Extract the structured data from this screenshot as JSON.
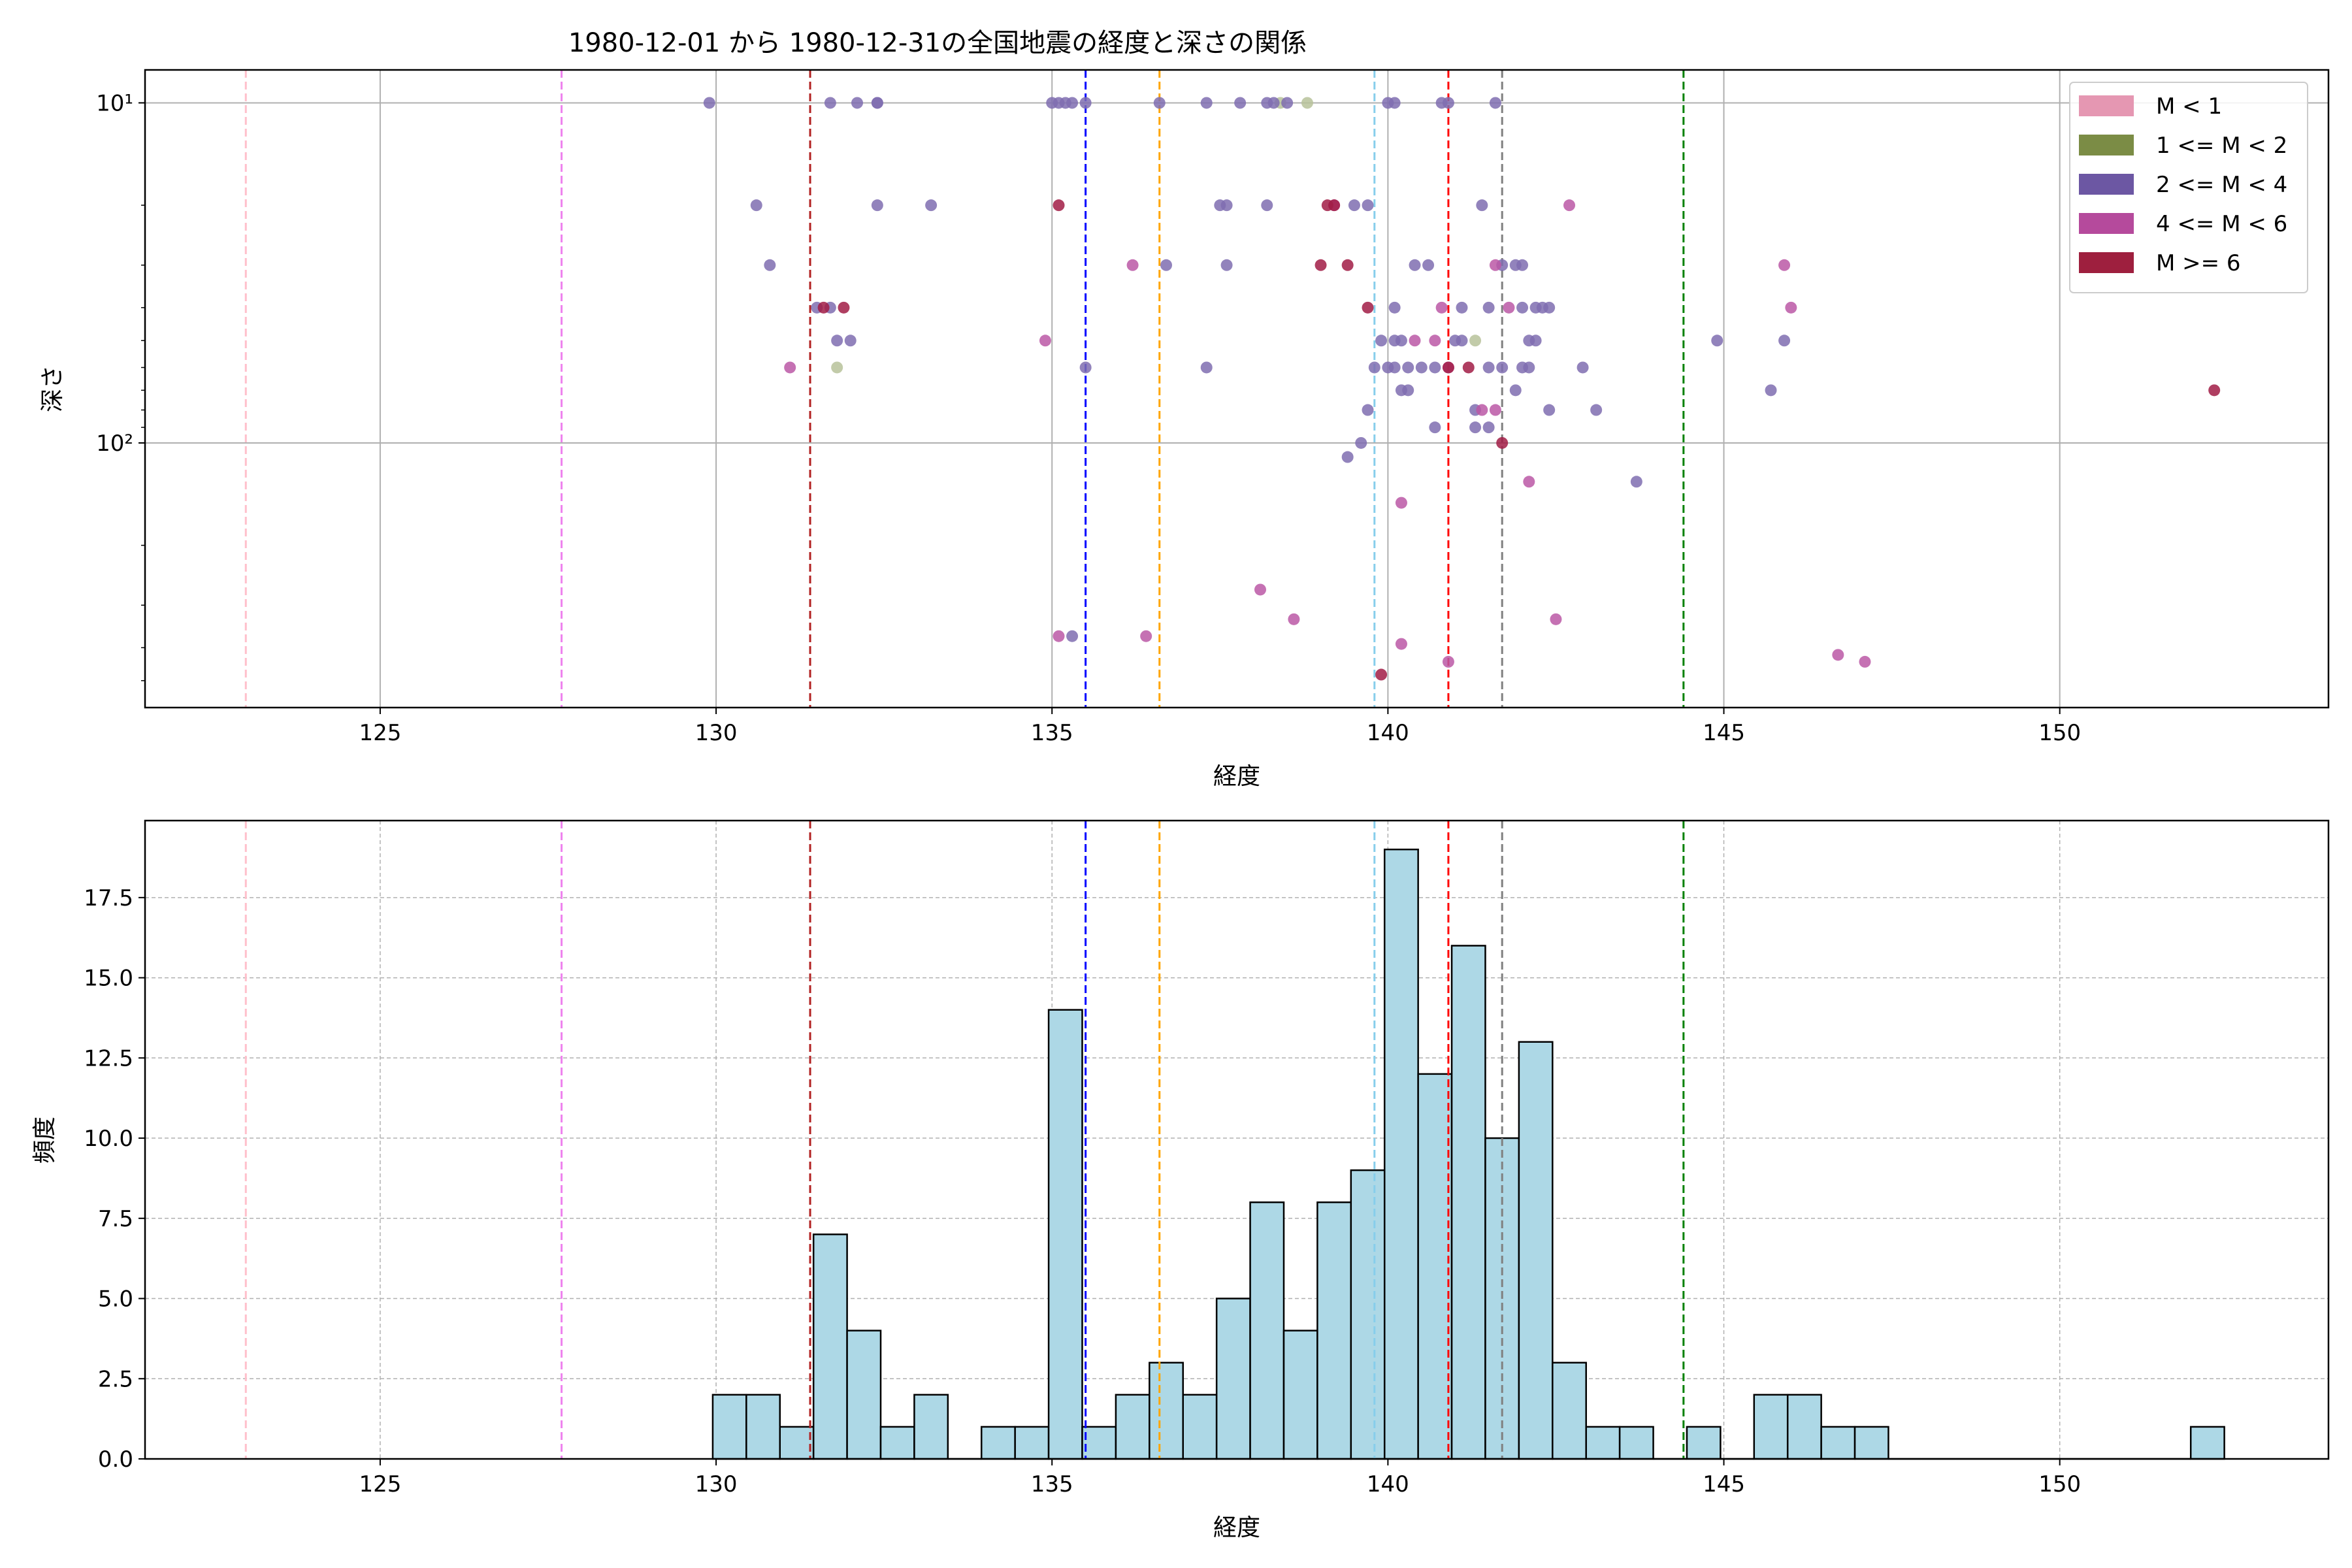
{
  "chart_data": [
    {
      "type": "scatter",
      "title": "1980-12-01 から 1980-12-31の全国地震の経度と深さの関係",
      "xlabel": "経度",
      "ylabel": "深さ",
      "xlim": [
        121.5,
        154
      ],
      "ylim": [
        600,
        8
      ],
      "yscale": "log-inverted",
      "xticks": [
        125,
        130,
        135,
        140,
        145,
        150
      ],
      "xtick_labels": [
        "125",
        "130",
        "135",
        "140",
        "145",
        "150"
      ],
      "yticks": [
        10,
        100
      ],
      "ytick_labels": [
        "10¹",
        "10²"
      ],
      "grid": true,
      "legend": {
        "position": "top-right",
        "entries": [
          {
            "label": "M < 1",
            "color": "#e597b2"
          },
          {
            "label": "1 <= M < 2",
            "color": "#7b8c45"
          },
          {
            "label": "2 <= M < 4",
            "color": "#6c57a3"
          },
          {
            "label": "4 <= M < 6",
            "color": "#b54a9c"
          },
          {
            "label": "M >= 6",
            "color": "#9e1f3e"
          }
        ]
      },
      "vlines": [
        {
          "x": 123.0,
          "color": "#ffc0cb"
        },
        {
          "x": 127.7,
          "color": "#ee82ee"
        },
        {
          "x": 131.4,
          "color": "#b22222"
        },
        {
          "x": 135.5,
          "color": "#0000ff"
        },
        {
          "x": 136.6,
          "color": "#ffa500"
        },
        {
          "x": 139.8,
          "color": "#87ceeb"
        },
        {
          "x": 140.9,
          "color": "#ff0000"
        },
        {
          "x": 141.7,
          "color": "#808080"
        },
        {
          "x": 144.4,
          "color": "#008000"
        }
      ],
      "series": [
        {
          "name": "1 <= M < 2",
          "color": "#b7c29a",
          "points": [
            [
              138.8,
              10
            ],
            [
              138.4,
              10
            ],
            [
              131.8,
              60
            ],
            [
              141.3,
              50
            ]
          ]
        },
        {
          "name": "2 <= M < 4",
          "color": "#7f6db0",
          "points": [
            [
              129.9,
              10
            ],
            [
              131.7,
              10
            ],
            [
              132.1,
              10
            ],
            [
              132.4,
              10
            ],
            [
              132.4,
              10
            ],
            [
              135.0,
              10
            ],
            [
              135.1,
              10
            ],
            [
              135.2,
              10
            ],
            [
              135.3,
              10
            ],
            [
              135.5,
              10
            ],
            [
              136.6,
              10
            ],
            [
              137.3,
              10
            ],
            [
              137.8,
              10
            ],
            [
              138.2,
              10
            ],
            [
              138.3,
              10
            ],
            [
              138.5,
              10
            ],
            [
              140.1,
              10
            ],
            [
              140.0,
              10
            ],
            [
              140.8,
              10
            ],
            [
              140.9,
              10
            ],
            [
              141.6,
              10
            ],
            [
              130.6,
              20
            ],
            [
              132.4,
              20
            ],
            [
              133.2,
              20
            ],
            [
              137.5,
              20
            ],
            [
              137.6,
              20
            ],
            [
              138.2,
              20
            ],
            [
              139.5,
              20
            ],
            [
              139.7,
              20
            ],
            [
              141.4,
              20
            ],
            [
              130.8,
              30
            ],
            [
              136.7,
              30
            ],
            [
              137.6,
              30
            ],
            [
              140.4,
              30
            ],
            [
              140.6,
              30
            ],
            [
              141.7,
              30
            ],
            [
              141.9,
              30
            ],
            [
              142.0,
              30
            ],
            [
              131.5,
              40
            ],
            [
              131.7,
              40
            ],
            [
              140.1,
              40
            ],
            [
              141.1,
              40
            ],
            [
              141.5,
              40
            ],
            [
              142.0,
              40
            ],
            [
              142.2,
              40
            ],
            [
              142.3,
              40
            ],
            [
              142.4,
              40
            ],
            [
              131.8,
              50
            ],
            [
              132.0,
              50
            ],
            [
              139.9,
              50
            ],
            [
              140.1,
              50
            ],
            [
              140.2,
              50
            ],
            [
              141.0,
              50
            ],
            [
              141.1,
              50
            ],
            [
              142.1,
              50
            ],
            [
              142.2,
              50
            ],
            [
              144.9,
              50
            ],
            [
              145.9,
              50
            ],
            [
              135.5,
              60
            ],
            [
              137.3,
              60
            ],
            [
              139.8,
              60
            ],
            [
              140.0,
              60
            ],
            [
              140.1,
              60
            ],
            [
              140.3,
              60
            ],
            [
              140.5,
              60
            ],
            [
              140.7,
              60
            ],
            [
              141.5,
              60
            ],
            [
              141.7,
              60
            ],
            [
              142.0,
              60
            ],
            [
              142.1,
              60
            ],
            [
              142.9,
              60
            ],
            [
              140.2,
              70
            ],
            [
              140.3,
              70
            ],
            [
              141.9,
              70
            ],
            [
              145.7,
              70
            ],
            [
              139.7,
              80
            ],
            [
              142.4,
              80
            ],
            [
              143.1,
              80
            ],
            [
              141.3,
              80
            ],
            [
              140.7,
              90
            ],
            [
              141.3,
              90
            ],
            [
              141.5,
              90
            ],
            [
              139.6,
              100
            ],
            [
              139.4,
              110
            ],
            [
              143.7,
              130
            ],
            [
              135.3,
              370
            ]
          ]
        },
        {
          "name": "4 <= M < 6",
          "color": "#bb58a6",
          "points": [
            [
              142.7,
              20
            ],
            [
              139.2,
              20
            ],
            [
              136.2,
              30
            ],
            [
              141.6,
              30
            ],
            [
              145.9,
              30
            ],
            [
              140.8,
              40
            ],
            [
              141.8,
              40
            ],
            [
              146.0,
              40
            ],
            [
              134.9,
              50
            ],
            [
              140.7,
              50
            ],
            [
              140.4,
              50
            ],
            [
              131.1,
              60
            ],
            [
              140.9,
              60
            ],
            [
              141.4,
              80
            ],
            [
              141.6,
              80
            ],
            [
              142.1,
              130
            ],
            [
              140.2,
              150
            ],
            [
              138.1,
              270
            ],
            [
              138.6,
              330
            ],
            [
              142.5,
              330
            ],
            [
              135.1,
              370
            ],
            [
              136.4,
              370
            ],
            [
              140.2,
              390
            ],
            [
              146.7,
              420
            ],
            [
              147.1,
              440
            ],
            [
              140.9,
              440
            ]
          ]
        },
        {
          "name": "M >= 6",
          "color": "#a11c45",
          "points": [
            [
              135.1,
              20
            ],
            [
              139.1,
              20
            ],
            [
              139.2,
              20
            ],
            [
              139.0,
              30
            ],
            [
              139.4,
              30
            ],
            [
              131.6,
              40
            ],
            [
              131.9,
              40
            ],
            [
              139.7,
              40
            ],
            [
              140.9,
              60
            ],
            [
              141.2,
              60
            ],
            [
              141.7,
              100
            ],
            [
              152.3,
              70
            ],
            [
              139.9,
              480
            ]
          ]
        }
      ]
    },
    {
      "type": "bar",
      "title": "",
      "xlabel": "経度",
      "ylabel": "頻度",
      "xlim": [
        121.5,
        154
      ],
      "ylim": [
        0,
        19.9
      ],
      "xticks": [
        125,
        130,
        135,
        140,
        145,
        150
      ],
      "xtick_labels": [
        "125",
        "130",
        "135",
        "140",
        "145",
        "150"
      ],
      "yticks": [
        0,
        2.5,
        5,
        7.5,
        10,
        12.5,
        15,
        17.5
      ],
      "ytick_labels": [
        "0.0",
        "2.5",
        "5.0",
        "7.5",
        "10.0",
        "12.5",
        "15.0",
        "17.5"
      ],
      "grid": true,
      "bar_color": "#add8e6",
      "bin_start": 129.95,
      "bin_width": 0.5,
      "values": [
        2,
        2,
        1,
        7,
        4,
        1,
        2,
        0,
        1,
        1,
        14,
        1,
        2,
        3,
        2,
        5,
        8,
        4,
        8,
        9,
        19,
        12,
        16,
        10,
        13,
        3,
        1,
        1,
        0,
        1,
        0,
        2,
        2,
        1,
        1,
        0,
        0,
        0,
        0,
        0,
        0,
        0,
        0,
        0,
        1
      ],
      "vlines": [
        {
          "x": 123.0,
          "color": "#ffc0cb"
        },
        {
          "x": 127.7,
          "color": "#ee82ee"
        },
        {
          "x": 131.4,
          "color": "#b22222"
        },
        {
          "x": 135.5,
          "color": "#0000ff"
        },
        {
          "x": 136.6,
          "color": "#ffa500"
        },
        {
          "x": 139.8,
          "color": "#87ceeb"
        },
        {
          "x": 140.9,
          "color": "#ff0000"
        },
        {
          "x": 141.7,
          "color": "#808080"
        },
        {
          "x": 144.4,
          "color": "#008000"
        }
      ]
    }
  ]
}
